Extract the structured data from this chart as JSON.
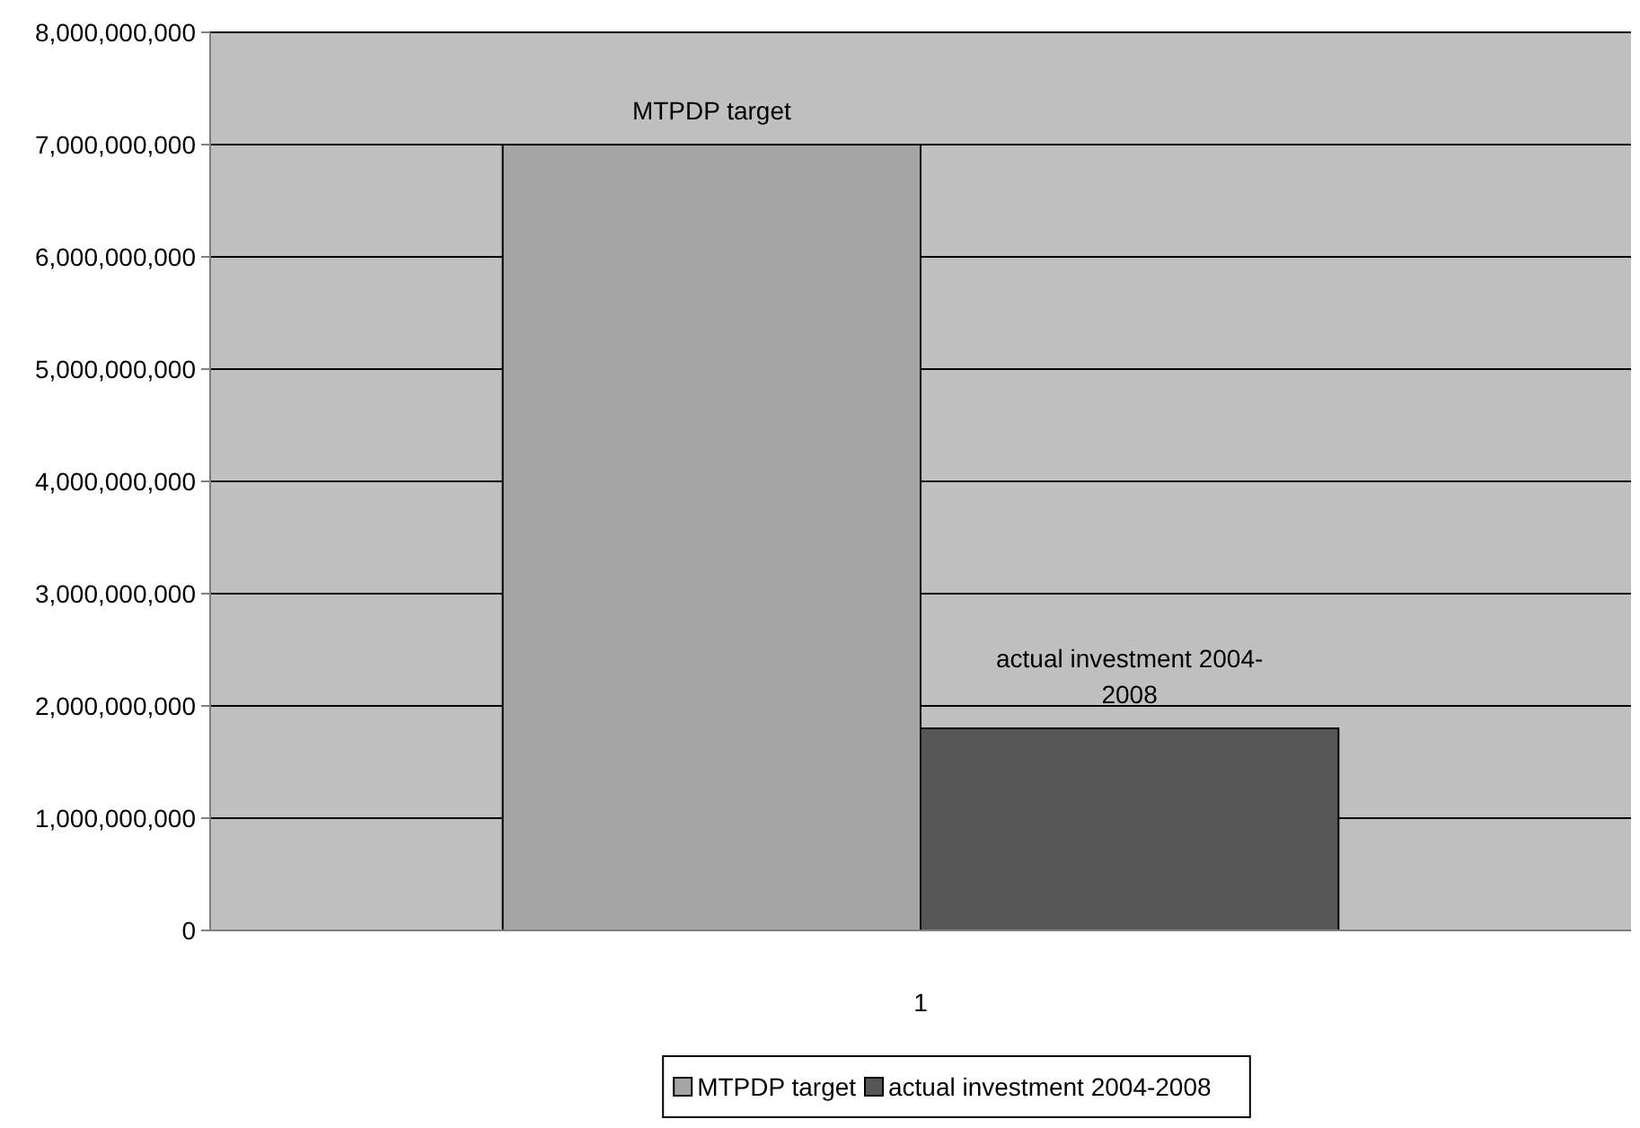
{
  "chart_data": {
    "type": "bar",
    "categories": [
      "1"
    ],
    "series": [
      {
        "name": "MTPDP target",
        "color": "#a5a5a5",
        "values": [
          7000000000
        ]
      },
      {
        "name": "actual investment 2004-2008",
        "color": "#575757",
        "values": [
          1800000000
        ]
      }
    ],
    "ylim": [
      0,
      8000000000
    ],
    "yticks": [
      0,
      {
        "value": 1000000000,
        "label": "1,000,000,000"
      },
      {
        "value": 2000000000,
        "label": "2,000,000,000"
      },
      {
        "value": 3000000000,
        "label": "3,000,000,000"
      },
      {
        "value": 4000000000,
        "label": "4,000,000,000"
      },
      {
        "value": 5000000000,
        "label": "5,000,000,000"
      },
      {
        "value": 6000000000,
        "label": "6,000,000,000"
      },
      {
        "value": 7000000000,
        "label": "7,000,000,000"
      },
      {
        "value": 8000000000,
        "label": "8,000,000,000"
      }
    ],
    "grid": "y",
    "legend": "bottom"
  }
}
